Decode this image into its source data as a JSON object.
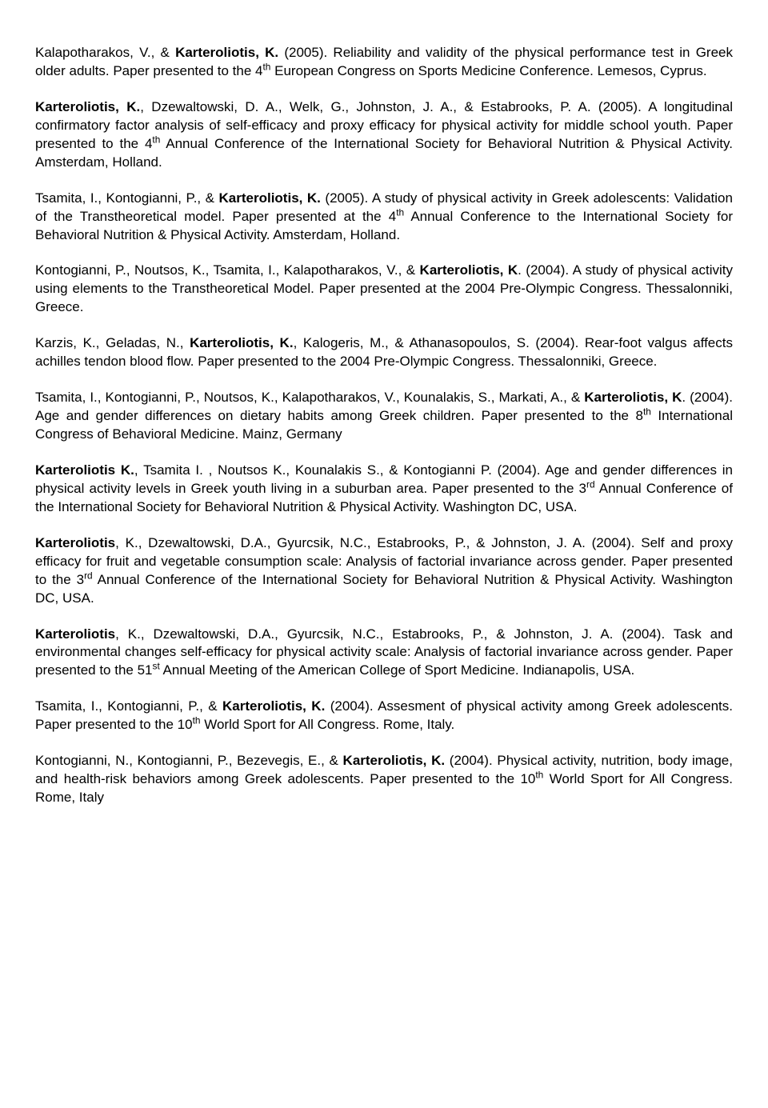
{
  "entries": [
    {
      "segments": [
        {
          "text": "Kalapotharakos, V., & ",
          "bold": false
        },
        {
          "text": "Karteroliotis, K.",
          "bold": true
        },
        {
          "text": " (2005). Reliability and validity of the physical performance test in Greek older adults. Paper presented to the 4",
          "bold": false
        },
        {
          "text": "th",
          "sup": true
        },
        {
          "text": " European Congress on Sports Medicine Conference. Lemesos, Cyprus.",
          "bold": false
        }
      ]
    },
    {
      "segments": [
        {
          "text": "Karteroliotis, K.",
          "bold": true
        },
        {
          "text": ", Dzewaltowski, D. A., Welk, G., Johnston, J. A., & Estabrooks, P. A. (2005). A longitudinal confirmatory factor analysis of self-efficacy and proxy efficacy for physical activity for middle school youth. Paper presented to the 4",
          "bold": false
        },
        {
          "text": "th",
          "sup": true
        },
        {
          "text": " Annual Conference of the International Society for Behavioral Nutrition & Physical Activity. Amsterdam, Holland.",
          "bold": false
        }
      ]
    },
    {
      "segments": [
        {
          "text": "Tsamita, I., Kontogianni, P., & ",
          "bold": false
        },
        {
          "text": "Karteroliotis, K.",
          "bold": true
        },
        {
          "text": " (2005). A study of physical activity in Greek adolescents: Validation of the Transtheoretical model. Paper presented at the 4",
          "bold": false
        },
        {
          "text": "th",
          "sup": true
        },
        {
          "text": " Annual Conference to the International Society for Behavioral Nutrition & Physical Activity. Amsterdam, Holland.",
          "bold": false
        }
      ]
    },
    {
      "segments": [
        {
          "text": "Kontogianni, P., Noutsos, K., Tsamita, I., Kalapotharakos, V., & ",
          "bold": false
        },
        {
          "text": "Karteroliotis, K",
          "bold": true
        },
        {
          "text": ". (2004). A study of physical activity using elements to the Transtheoretical Model. Paper presented at the 2004 Pre-Olympic Congress. Thessalonniki, Greece.",
          "bold": false
        }
      ]
    },
    {
      "segments": [
        {
          "text": "Karzis, K., Geladas, N., ",
          "bold": false
        },
        {
          "text": "Karteroliotis, K.",
          "bold": true
        },
        {
          "text": ", Kalogeris, M., & Athanasopoulos, S. (2004). Rear-foot valgus affects achilles tendon blood flow. Paper presented to the 2004 Pre-Olympic Congress. Thessalonniki, Greece.",
          "bold": false
        }
      ]
    },
    {
      "segments": [
        {
          "text": "Tsamita, I., Kontogianni, P., Noutsos, K., Kalapotharakos, V., Kounalakis, S., Markati, A., & ",
          "bold": false
        },
        {
          "text": "Karteroliotis, K",
          "bold": true
        },
        {
          "text": ". (2004). Age and gender differences on dietary habits among Greek children. Paper presented to the 8",
          "bold": false
        },
        {
          "text": "th",
          "sup": true
        },
        {
          "text": " International Congress of Behavioral Medicine. Mainz, Germany",
          "bold": false
        }
      ]
    },
    {
      "segments": [
        {
          "text": "Karteroliotis K.",
          "bold": true
        },
        {
          "text": ", Tsamita I. , Noutsos K., Kounalakis S., & Kontogianni P. (2004). Age and gender differences in physical activity levels in Greek youth living in a suburban area. Paper presented to the 3",
          "bold": false
        },
        {
          "text": "rd",
          "sup": true
        },
        {
          "text": " Annual Conference of the International Society for Behavioral Nutrition & Physical Activity. Washington DC, USA.",
          "bold": false
        }
      ]
    },
    {
      "segments": [
        {
          "text": "Karteroliotis",
          "bold": true
        },
        {
          "text": ", K., Dzewaltowski, D.A., Gyurcsik, N.C., Estabrooks, P., & Johnston, J. A. (2004). Self and proxy efficacy for fruit and vegetable consumption scale: Analysis of factorial invariance across gender. Paper presented to the 3",
          "bold": false
        },
        {
          "text": "rd",
          "sup": true
        },
        {
          "text": " Annual Conference of the International Society for Behavioral Nutrition & Physical Activity. Washington DC, USA.",
          "bold": false
        }
      ]
    },
    {
      "segments": [
        {
          "text": "Karteroliotis",
          "bold": true
        },
        {
          "text": ", K., Dzewaltowski, D.A., Gyurcsik, N.C., Estabrooks, P., & Johnston, J. A. (2004). Task and environmental changes self-efficacy for physical activity scale: Analysis of factorial invariance across gender. Paper presented to the 51",
          "bold": false
        },
        {
          "text": "st",
          "sup": true
        },
        {
          "text": " Annual Meeting of the American College of Sport Medicine. Indianapolis, USA.",
          "bold": false
        }
      ]
    },
    {
      "segments": [
        {
          "text": "Tsamita, I., Kontogianni, P., & ",
          "bold": false
        },
        {
          "text": "Karteroliotis, K.",
          "bold": true
        },
        {
          "text": " (2004). Assesment of physical activity among Greek adolescents. Paper presented to the 10",
          "bold": false
        },
        {
          "text": "th",
          "sup": true
        },
        {
          "text": " World Sport for All Congress. Rome, Italy.",
          "bold": false
        }
      ]
    },
    {
      "segments": [
        {
          "text": "Kontogianni, N., Kontogianni, P., Bezevegis, E., & ",
          "bold": false
        },
        {
          "text": "Karteroliotis, K.",
          "bold": true
        },
        {
          "text": " (2004). Physical activity, nutrition, body image, and health-risk behaviors among Greek adolescents. Paper presented to the 10",
          "bold": false
        },
        {
          "text": "th",
          "sup": true
        },
        {
          "text": " World Sport for All Congress. Rome, Italy",
          "bold": false
        }
      ]
    }
  ]
}
